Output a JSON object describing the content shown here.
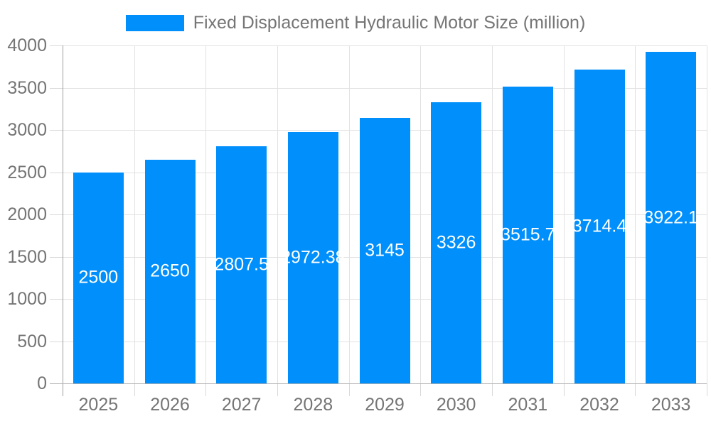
{
  "legend": {
    "label": "Fixed Displacement Hydraulic Motor Size (million)",
    "swatch_color": "#008FFB"
  },
  "chart_data": {
    "type": "bar",
    "title": "Fixed Displacement Hydraulic Motor Size (million)",
    "categories": [
      "2025",
      "2026",
      "2027",
      "2028",
      "2029",
      "2030",
      "2031",
      "2032",
      "2033"
    ],
    "series": [
      {
        "name": "Fixed Displacement Hydraulic Motor Size (million)",
        "values": [
          2500,
          2650,
          2807.5,
          2972.38,
          3145,
          3326,
          3515.7,
          3714.4,
          3922.1
        ]
      }
    ],
    "data_labels": [
      "2500",
      "2650",
      "2807.5",
      "2972.38",
      "3145",
      "3326",
      "3515.7",
      "3714.4",
      "3922.1"
    ],
    "xlabel": "",
    "ylabel": "",
    "ylim": [
      0,
      4000
    ],
    "ytick_step": 500,
    "yticks": [
      "0",
      "500",
      "1000",
      "1500",
      "2000",
      "2500",
      "3000",
      "3500",
      "4000"
    ],
    "grid": true,
    "legend_position": "top",
    "bar_color": "#008FFB",
    "data_label_color": "#ffffff",
    "axis_text_color": "#757575"
  }
}
